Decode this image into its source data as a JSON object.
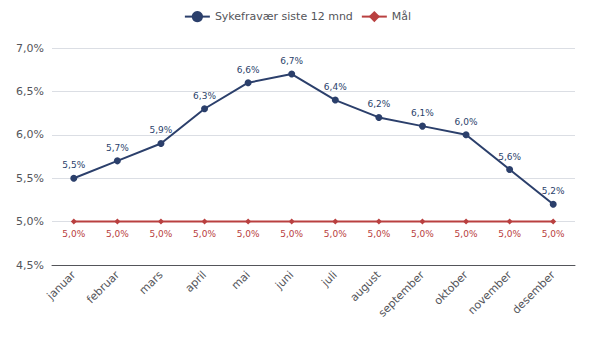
{
  "chart_data": {
    "type": "line",
    "categories": [
      "januar",
      "februar",
      "mars",
      "april",
      "mai",
      "juni",
      "juli",
      "august",
      "september",
      "oktober",
      "november",
      "desember"
    ],
    "series": [
      {
        "name": "Sykefravær siste 12 mnd",
        "color": "#2b3f6b",
        "marker": "circle",
        "values": [
          5.5,
          5.7,
          5.9,
          6.3,
          6.6,
          6.7,
          6.4,
          6.2,
          6.1,
          6.0,
          5.6,
          5.2
        ],
        "value_labels": [
          "5,5%",
          "5,7%",
          "5,9%",
          "6,3%",
          "6,6%",
          "6,7%",
          "6,4%",
          "6,2%",
          "6,1%",
          "6,0%",
          "5,6%",
          "5,2%"
        ]
      },
      {
        "name": "Mål",
        "color": "#b94040",
        "marker": "diamond",
        "values": [
          5.0,
          5.0,
          5.0,
          5.0,
          5.0,
          5.0,
          5.0,
          5.0,
          5.0,
          5.0,
          5.0,
          5.0
        ],
        "value_labels": [
          "5,0%",
          "5,0%",
          "5,0%",
          "5,0%",
          "5,0%",
          "5,0%",
          "5,0%",
          "5,0%",
          "5,0%",
          "5,0%",
          "5,0%",
          "5,0%"
        ]
      }
    ],
    "ylim": [
      4.5,
      7.0
    ],
    "yticks": [
      {
        "value": 4.5,
        "label": "4,5%"
      },
      {
        "value": 5.0,
        "label": "5,0%"
      },
      {
        "value": 5.5,
        "label": "5,5%"
      },
      {
        "value": 6.0,
        "label": "6,0%"
      },
      {
        "value": 6.5,
        "label": "6,5%"
      },
      {
        "value": 7.0,
        "label": "7,0%"
      }
    ],
    "grid": true,
    "legend": "top",
    "data_labels": true
  }
}
